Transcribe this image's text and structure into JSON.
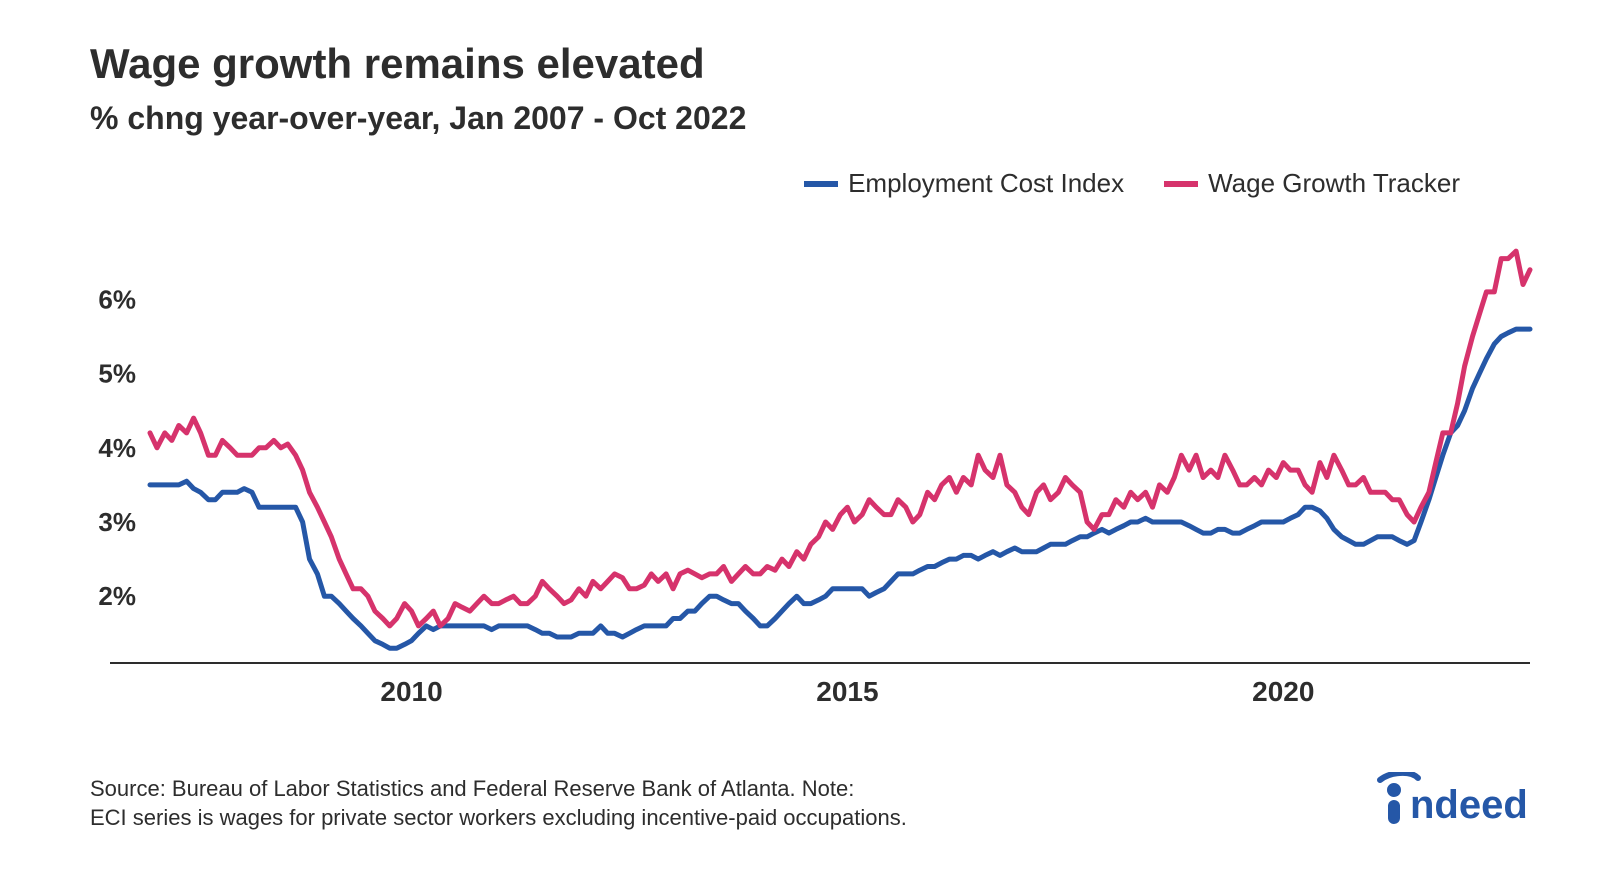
{
  "header": {
    "title": "Wage growth remains elevated",
    "subtitle": "% chng year-over-year, Jan 2007 - Oct 2022"
  },
  "legend": {
    "items": [
      {
        "label": "Employment Cost Index",
        "color": "#2557a7"
      },
      {
        "label": "Wage Growth Tracker",
        "color": "#d6336c"
      }
    ]
  },
  "chart": {
    "type": "line",
    "background_color": "#ffffff",
    "axis_color": "#2d2d2d",
    "grid_color": "#ffffff",
    "line_width": 5,
    "axis_line_width": 2,
    "x": {
      "min": 2007.0,
      "max": 2022.83,
      "ticks": [
        2010,
        2015,
        2020
      ],
      "tick_labels": [
        "2010",
        "2015",
        "2020"
      ],
      "label_fontsize": 28,
      "label_fontweight": "700"
    },
    "y": {
      "min": 1.1,
      "max": 6.8,
      "ticks": [
        2,
        3,
        4,
        5,
        6
      ],
      "tick_labels": [
        "2%",
        "3%",
        "4%",
        "5%",
        "6%"
      ],
      "label_fontsize": 26,
      "label_fontweight": "700"
    },
    "series": [
      {
        "name": "Employment Cost Index",
        "color": "#2557a7",
        "x": [
          2007.0,
          2007.08,
          2007.17,
          2007.25,
          2007.33,
          2007.42,
          2007.5,
          2007.58,
          2007.67,
          2007.75,
          2007.83,
          2007.92,
          2008.0,
          2008.08,
          2008.17,
          2008.25,
          2008.33,
          2008.42,
          2008.5,
          2008.58,
          2008.67,
          2008.75,
          2008.83,
          2008.92,
          2009.0,
          2009.08,
          2009.17,
          2009.25,
          2009.33,
          2009.42,
          2009.5,
          2009.58,
          2009.67,
          2009.75,
          2009.83,
          2009.92,
          2010.0,
          2010.08,
          2010.17,
          2010.25,
          2010.33,
          2010.42,
          2010.5,
          2010.58,
          2010.67,
          2010.75,
          2010.83,
          2010.92,
          2011.0,
          2011.08,
          2011.17,
          2011.25,
          2011.33,
          2011.42,
          2011.5,
          2011.58,
          2011.67,
          2011.75,
          2011.83,
          2011.92,
          2012.0,
          2012.08,
          2012.17,
          2012.25,
          2012.33,
          2012.42,
          2012.5,
          2012.58,
          2012.67,
          2012.75,
          2012.83,
          2012.92,
          2013.0,
          2013.08,
          2013.17,
          2013.25,
          2013.33,
          2013.42,
          2013.5,
          2013.58,
          2013.67,
          2013.75,
          2013.83,
          2013.92,
          2014.0,
          2014.08,
          2014.17,
          2014.25,
          2014.33,
          2014.42,
          2014.5,
          2014.58,
          2014.67,
          2014.75,
          2014.83,
          2014.92,
          2015.0,
          2015.08,
          2015.17,
          2015.25,
          2015.33,
          2015.42,
          2015.5,
          2015.58,
          2015.67,
          2015.75,
          2015.83,
          2015.92,
          2016.0,
          2016.08,
          2016.17,
          2016.25,
          2016.33,
          2016.42,
          2016.5,
          2016.58,
          2016.67,
          2016.75,
          2016.83,
          2016.92,
          2017.0,
          2017.08,
          2017.17,
          2017.25,
          2017.33,
          2017.42,
          2017.5,
          2017.58,
          2017.67,
          2017.75,
          2017.83,
          2017.92,
          2018.0,
          2018.08,
          2018.17,
          2018.25,
          2018.33,
          2018.42,
          2018.5,
          2018.58,
          2018.67,
          2018.75,
          2018.83,
          2018.92,
          2019.0,
          2019.08,
          2019.17,
          2019.25,
          2019.33,
          2019.42,
          2019.5,
          2019.58,
          2019.67,
          2019.75,
          2019.83,
          2019.92,
          2020.0,
          2020.08,
          2020.17,
          2020.25,
          2020.33,
          2020.42,
          2020.5,
          2020.58,
          2020.67,
          2020.75,
          2020.83,
          2020.92,
          2021.0,
          2021.08,
          2021.17,
          2021.25,
          2021.33,
          2021.42,
          2021.5,
          2021.58,
          2021.67,
          2021.75,
          2021.83,
          2021.92,
          2022.0,
          2022.08,
          2022.17,
          2022.25,
          2022.33,
          2022.42,
          2022.5,
          2022.58,
          2022.67,
          2022.75,
          2022.83
        ],
        "y": [
          3.5,
          3.5,
          3.5,
          3.5,
          3.5,
          3.55,
          3.45,
          3.4,
          3.3,
          3.3,
          3.4,
          3.4,
          3.4,
          3.45,
          3.4,
          3.2,
          3.2,
          3.2,
          3.2,
          3.2,
          3.2,
          3.0,
          2.5,
          2.3,
          2.0,
          2.0,
          1.9,
          1.8,
          1.7,
          1.6,
          1.5,
          1.4,
          1.35,
          1.3,
          1.3,
          1.35,
          1.4,
          1.5,
          1.6,
          1.55,
          1.6,
          1.6,
          1.6,
          1.6,
          1.6,
          1.6,
          1.6,
          1.55,
          1.6,
          1.6,
          1.6,
          1.6,
          1.6,
          1.55,
          1.5,
          1.5,
          1.45,
          1.45,
          1.45,
          1.5,
          1.5,
          1.5,
          1.6,
          1.5,
          1.5,
          1.45,
          1.5,
          1.55,
          1.6,
          1.6,
          1.6,
          1.6,
          1.7,
          1.7,
          1.8,
          1.8,
          1.9,
          2.0,
          2.0,
          1.95,
          1.9,
          1.9,
          1.8,
          1.7,
          1.6,
          1.6,
          1.7,
          1.8,
          1.9,
          2.0,
          1.9,
          1.9,
          1.95,
          2.0,
          2.1,
          2.1,
          2.1,
          2.1,
          2.1,
          2.0,
          2.05,
          2.1,
          2.2,
          2.3,
          2.3,
          2.3,
          2.35,
          2.4,
          2.4,
          2.45,
          2.5,
          2.5,
          2.55,
          2.55,
          2.5,
          2.55,
          2.6,
          2.55,
          2.6,
          2.65,
          2.6,
          2.6,
          2.6,
          2.65,
          2.7,
          2.7,
          2.7,
          2.75,
          2.8,
          2.8,
          2.85,
          2.9,
          2.85,
          2.9,
          2.95,
          3.0,
          3.0,
          3.05,
          3.0,
          3.0,
          3.0,
          3.0,
          3.0,
          2.95,
          2.9,
          2.85,
          2.85,
          2.9,
          2.9,
          2.85,
          2.85,
          2.9,
          2.95,
          3.0,
          3.0,
          3.0,
          3.0,
          3.05,
          3.1,
          3.2,
          3.2,
          3.15,
          3.05,
          2.9,
          2.8,
          2.75,
          2.7,
          2.7,
          2.75,
          2.8,
          2.8,
          2.8,
          2.75,
          2.7,
          2.75,
          3.0,
          3.3,
          3.6,
          3.9,
          4.2,
          4.3,
          4.5,
          4.8,
          5.0,
          5.2,
          5.4,
          5.5,
          5.55,
          5.6,
          5.6,
          5.6
        ]
      },
      {
        "name": "Wage Growth Tracker",
        "color": "#d6336c",
        "x": [
          2007.0,
          2007.08,
          2007.17,
          2007.25,
          2007.33,
          2007.42,
          2007.5,
          2007.58,
          2007.67,
          2007.75,
          2007.83,
          2007.92,
          2008.0,
          2008.08,
          2008.17,
          2008.25,
          2008.33,
          2008.42,
          2008.5,
          2008.58,
          2008.67,
          2008.75,
          2008.83,
          2008.92,
          2009.0,
          2009.08,
          2009.17,
          2009.25,
          2009.33,
          2009.42,
          2009.5,
          2009.58,
          2009.67,
          2009.75,
          2009.83,
          2009.92,
          2010.0,
          2010.08,
          2010.17,
          2010.25,
          2010.33,
          2010.42,
          2010.5,
          2010.58,
          2010.67,
          2010.75,
          2010.83,
          2010.92,
          2011.0,
          2011.08,
          2011.17,
          2011.25,
          2011.33,
          2011.42,
          2011.5,
          2011.58,
          2011.67,
          2011.75,
          2011.83,
          2011.92,
          2012.0,
          2012.08,
          2012.17,
          2012.25,
          2012.33,
          2012.42,
          2012.5,
          2012.58,
          2012.67,
          2012.75,
          2012.83,
          2012.92,
          2013.0,
          2013.08,
          2013.17,
          2013.25,
          2013.33,
          2013.42,
          2013.5,
          2013.58,
          2013.67,
          2013.75,
          2013.83,
          2013.92,
          2014.0,
          2014.08,
          2014.17,
          2014.25,
          2014.33,
          2014.42,
          2014.5,
          2014.58,
          2014.67,
          2014.75,
          2014.83,
          2014.92,
          2015.0,
          2015.08,
          2015.17,
          2015.25,
          2015.33,
          2015.42,
          2015.5,
          2015.58,
          2015.67,
          2015.75,
          2015.83,
          2015.92,
          2016.0,
          2016.08,
          2016.17,
          2016.25,
          2016.33,
          2016.42,
          2016.5,
          2016.58,
          2016.67,
          2016.75,
          2016.83,
          2016.92,
          2017.0,
          2017.08,
          2017.17,
          2017.25,
          2017.33,
          2017.42,
          2017.5,
          2017.58,
          2017.67,
          2017.75,
          2017.83,
          2017.92,
          2018.0,
          2018.08,
          2018.17,
          2018.25,
          2018.33,
          2018.42,
          2018.5,
          2018.58,
          2018.67,
          2018.75,
          2018.83,
          2018.92,
          2019.0,
          2019.08,
          2019.17,
          2019.25,
          2019.33,
          2019.42,
          2019.5,
          2019.58,
          2019.67,
          2019.75,
          2019.83,
          2019.92,
          2020.0,
          2020.08,
          2020.17,
          2020.25,
          2020.33,
          2020.42,
          2020.5,
          2020.58,
          2020.67,
          2020.75,
          2020.83,
          2020.92,
          2021.0,
          2021.08,
          2021.17,
          2021.25,
          2021.33,
          2021.42,
          2021.5,
          2021.58,
          2021.67,
          2021.75,
          2021.83,
          2021.92,
          2022.0,
          2022.08,
          2022.17,
          2022.25,
          2022.33,
          2022.42,
          2022.5,
          2022.58,
          2022.67,
          2022.75,
          2022.83
        ],
        "y": [
          4.2,
          4.0,
          4.2,
          4.1,
          4.3,
          4.2,
          4.4,
          4.2,
          3.9,
          3.9,
          4.1,
          4.0,
          3.9,
          3.9,
          3.9,
          4.0,
          4.0,
          4.1,
          4.0,
          4.05,
          3.9,
          3.7,
          3.4,
          3.2,
          3.0,
          2.8,
          2.5,
          2.3,
          2.1,
          2.1,
          2.0,
          1.8,
          1.7,
          1.6,
          1.7,
          1.9,
          1.8,
          1.6,
          1.7,
          1.8,
          1.6,
          1.7,
          1.9,
          1.85,
          1.8,
          1.9,
          2.0,
          1.9,
          1.9,
          1.95,
          2.0,
          1.9,
          1.9,
          2.0,
          2.2,
          2.1,
          2.0,
          1.9,
          1.95,
          2.1,
          2.0,
          2.2,
          2.1,
          2.2,
          2.3,
          2.25,
          2.1,
          2.1,
          2.15,
          2.3,
          2.2,
          2.3,
          2.1,
          2.3,
          2.35,
          2.3,
          2.25,
          2.3,
          2.3,
          2.4,
          2.2,
          2.3,
          2.4,
          2.3,
          2.3,
          2.4,
          2.35,
          2.5,
          2.4,
          2.6,
          2.5,
          2.7,
          2.8,
          3.0,
          2.9,
          3.1,
          3.2,
          3.0,
          3.1,
          3.3,
          3.2,
          3.1,
          3.1,
          3.3,
          3.2,
          3.0,
          3.1,
          3.4,
          3.3,
          3.5,
          3.6,
          3.4,
          3.6,
          3.5,
          3.9,
          3.7,
          3.6,
          3.9,
          3.5,
          3.4,
          3.2,
          3.1,
          3.4,
          3.5,
          3.3,
          3.4,
          3.6,
          3.5,
          3.4,
          3.0,
          2.9,
          3.1,
          3.1,
          3.3,
          3.2,
          3.4,
          3.3,
          3.4,
          3.2,
          3.5,
          3.4,
          3.6,
          3.9,
          3.7,
          3.9,
          3.6,
          3.7,
          3.6,
          3.9,
          3.7,
          3.5,
          3.5,
          3.6,
          3.5,
          3.7,
          3.6,
          3.8,
          3.7,
          3.7,
          3.5,
          3.4,
          3.8,
          3.6,
          3.9,
          3.7,
          3.5,
          3.5,
          3.6,
          3.4,
          3.4,
          3.4,
          3.3,
          3.3,
          3.1,
          3.0,
          3.2,
          3.4,
          3.8,
          4.2,
          4.2,
          4.6,
          5.1,
          5.5,
          5.8,
          6.1,
          6.1,
          6.55,
          6.55,
          6.65,
          6.2,
          6.4
        ]
      }
    ]
  },
  "footer": {
    "source_line1": "Source: Bureau of Labor Statistics and Federal Reserve Bank of Atlanta. Note:",
    "source_line2": " ECI series is wages for private sector workers excluding incentive-paid occupations.",
    "brand_text": "indeed",
    "brand_color": "#2557a7"
  }
}
